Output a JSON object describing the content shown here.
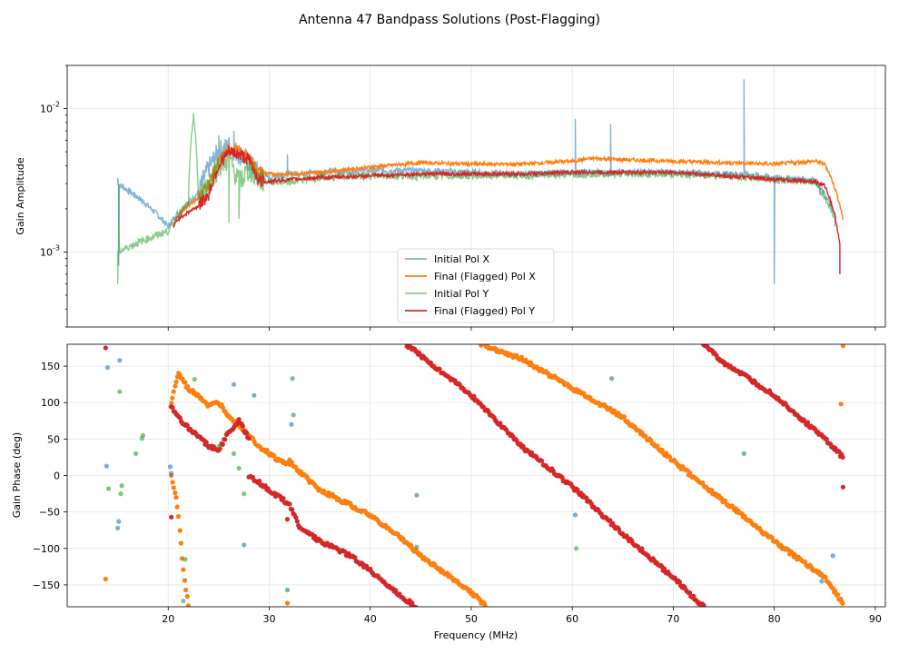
{
  "chart_data": [
    {
      "type": "line",
      "title": "Antenna 47 Bandpass Solutions (Post-Flagging)",
      "xlabel": "",
      "ylabel": "Gain Amplitude",
      "yscale": "log",
      "xlim": [
        10,
        91
      ],
      "ylim": [
        0.0003,
        0.02
      ],
      "y_ticks": [
        {
          "value": 0.01,
          "label": "10^-2"
        },
        {
          "value": 0.001,
          "label": "10^-3"
        }
      ],
      "legend_position": "lower-center",
      "series": [
        {
          "name": "Initial Pol X",
          "color": "#1f77b4",
          "x": [
            15,
            20,
            21,
            22,
            23,
            24,
            25,
            26,
            27,
            28,
            29,
            30,
            32,
            35,
            40,
            45,
            50,
            55,
            60,
            63,
            65,
            70,
            75,
            77,
            80,
            84,
            86
          ],
          "y": [
            0.003,
            0.0015,
            0.0019,
            0.0022,
            0.0026,
            0.0038,
            0.005,
            0.0055,
            0.0048,
            0.0042,
            0.0035,
            0.0033,
            0.0035,
            0.0036,
            0.0037,
            0.0037,
            0.0036,
            0.0035,
            0.0036,
            0.0036,
            0.0036,
            0.0036,
            0.0035,
            0.0035,
            0.0033,
            0.0032,
            0.0018
          ]
        },
        {
          "name": "Final (Flagged) Pol X",
          "color": "#ff7f0e",
          "x": [
            20.5,
            21,
            22,
            23,
            24,
            25,
            26,
            27,
            28,
            29,
            30,
            32,
            35,
            40,
            45,
            50,
            55,
            60,
            62,
            65,
            70,
            75,
            80,
            84,
            85,
            86,
            86.8
          ],
          "y": [
            0.0015,
            0.0018,
            0.0021,
            0.0024,
            0.003,
            0.0042,
            0.0052,
            0.005,
            0.0045,
            0.0036,
            0.0035,
            0.0035,
            0.0036,
            0.0039,
            0.0042,
            0.0041,
            0.0041,
            0.0043,
            0.0045,
            0.0044,
            0.0043,
            0.0042,
            0.0041,
            0.0043,
            0.0041,
            0.0028,
            0.0017
          ]
        },
        {
          "name": "Initial Pol Y",
          "color": "#2ca02c",
          "x": [
            15,
            20,
            21,
            22,
            22.5,
            23,
            24,
            25,
            26,
            27,
            28,
            29,
            30,
            32,
            35,
            40,
            45,
            50,
            55,
            60,
            65,
            70,
            75,
            80,
            84,
            86
          ],
          "y": [
            0.001,
            0.0014,
            0.0018,
            0.0022,
            0.009,
            0.0023,
            0.003,
            0.004,
            0.0045,
            0.003,
            0.0038,
            0.0032,
            0.0031,
            0.0031,
            0.0033,
            0.0034,
            0.0034,
            0.0034,
            0.0034,
            0.0035,
            0.0035,
            0.0035,
            0.0034,
            0.0032,
            0.0031,
            0.0017
          ]
        },
        {
          "name": "Final (Flagged) Pol Y",
          "color": "#d62728",
          "x": [
            20.5,
            21,
            22,
            23,
            24,
            25,
            26,
            27,
            28,
            29,
            30,
            32,
            35,
            40,
            45,
            50,
            55,
            60,
            65,
            70,
            75,
            80,
            84,
            85,
            86,
            86.5
          ],
          "y": [
            0.0015,
            0.0017,
            0.0019,
            0.0021,
            0.0025,
            0.004,
            0.005,
            0.0048,
            0.0044,
            0.0031,
            0.0031,
            0.0032,
            0.0033,
            0.0034,
            0.0035,
            0.0035,
            0.0035,
            0.0036,
            0.0036,
            0.0036,
            0.0034,
            0.0032,
            0.0031,
            0.0029,
            0.0018,
            0.0011
          ]
        }
      ]
    },
    {
      "type": "scatter",
      "title": "",
      "xlabel": "Frequency (MHz)",
      "ylabel": "Gain Phase (deg)",
      "xlim": [
        10,
        91
      ],
      "ylim": [
        -180,
        180
      ],
      "x_ticks": [
        20,
        30,
        40,
        50,
        60,
        70,
        80,
        90
      ],
      "y_ticks": [
        -150,
        -100,
        -50,
        0,
        50,
        100,
        150
      ],
      "series": [
        {
          "name": "Final (Flagged) Pol X",
          "color": "#ff7f0e",
          "segments": [
            {
              "x": [
                20.3,
                20.6,
                20.9,
                21.2,
                21.5,
                21.8,
                22.0
              ],
              "y": [
                0,
                -20,
                -40,
                -80,
                -130,
                -160,
                -180
              ]
            },
            {
              "x": [
                20.3,
                21,
                22,
                23,
                24,
                25,
                26,
                27,
                28,
                29,
                30,
                31,
                32
              ],
              "y": [
                100,
                140,
                118,
                110,
                95,
                100,
                82,
                70,
                55,
                40,
                30,
                20,
                15
              ]
            },
            {
              "x": [
                32,
                33,
                35,
                38,
                40,
                43,
                45,
                48,
                50,
                51.5
              ],
              "y": [
                20,
                5,
                -20,
                -40,
                -55,
                -85,
                -110,
                -140,
                -160,
                -180
              ]
            },
            {
              "x": [
                51,
                55,
                60,
                65,
                70,
                75,
                80,
                85,
                86.8
              ],
              "y": [
                180,
                160,
                120,
                80,
                20,
                -35,
                -90,
                -140,
                -175
              ]
            }
          ],
          "outliers": [
            {
              "x": 13.8,
              "y": -142
            },
            {
              "x": 31.8,
              "y": -175
            },
            {
              "x": 86.6,
              "y": 98
            },
            {
              "x": 86.8,
              "y": 178
            }
          ]
        },
        {
          "name": "Final (Flagged) Pol Y",
          "color": "#d62728",
          "segments": [
            {
              "x": [
                20.3,
                21,
                22,
                23,
                24,
                25,
                26,
                27,
                28
              ],
              "y": [
                95,
                80,
                65,
                55,
                40,
                35,
                60,
                75,
                50
              ]
            },
            {
              "x": [
                28,
                30,
                32,
                33,
                35,
                38,
                40,
                43,
                44.5
              ],
              "y": [
                0,
                -20,
                -40,
                -70,
                -90,
                -110,
                -130,
                -165,
                -180
              ]
            },
            {
              "x": [
                43.5,
                45,
                50,
                55,
                60,
                65,
                70,
                73
              ],
              "y": [
                180,
                165,
                110,
                40,
                -15,
                -80,
                -140,
                -180
              ]
            },
            {
              "x": [
                73,
                75,
                80,
                85,
                86.8
              ],
              "y": [
                180,
                155,
                110,
                50,
                25
              ]
            }
          ],
          "outliers": [
            {
              "x": 13.8,
              "y": 175
            },
            {
              "x": 20.3,
              "y": -57
            },
            {
              "x": 31.8,
              "y": -60
            },
            {
              "x": 86.8,
              "y": -16
            }
          ]
        },
        {
          "name": "Initial Pol X",
          "color": "#1f77b4",
          "outliers": [
            {
              "x": 13.9,
              "y": 13
            },
            {
              "x": 14.0,
              "y": 148
            },
            {
              "x": 15.2,
              "y": 158
            },
            {
              "x": 15.1,
              "y": -63
            },
            {
              "x": 15.0,
              "y": -72
            },
            {
              "x": 20.2,
              "y": 12
            },
            {
              "x": 20.3,
              "y": 3
            },
            {
              "x": 26.5,
              "y": 125
            },
            {
              "x": 27.5,
              "y": -95
            },
            {
              "x": 28.5,
              "y": 110
            },
            {
              "x": 31.8,
              "y": -157
            },
            {
              "x": 32.3,
              "y": 133
            },
            {
              "x": 32.2,
              "y": 70
            },
            {
              "x": 44.6,
              "y": -27
            },
            {
              "x": 60.3,
              "y": -54
            },
            {
              "x": 63.9,
              "y": 133
            },
            {
              "x": 77.0,
              "y": 30
            },
            {
              "x": 85.8,
              "y": -110
            },
            {
              "x": 84.7,
              "y": -145
            }
          ]
        },
        {
          "name": "Initial Pol Y",
          "color": "#2ca02c",
          "outliers": [
            {
              "x": 14.1,
              "y": -18
            },
            {
              "x": 15.2,
              "y": 115
            },
            {
              "x": 15.3,
              "y": -25
            },
            {
              "x": 15.4,
              "y": -14
            },
            {
              "x": 16.8,
              "y": 30
            },
            {
              "x": 17.5,
              "y": 55
            },
            {
              "x": 17.4,
              "y": 51
            },
            {
              "x": 21.5,
              "y": -172
            },
            {
              "x": 21.7,
              "y": -115
            },
            {
              "x": 22.6,
              "y": 132
            },
            {
              "x": 25.0,
              "y": 40
            },
            {
              "x": 26.5,
              "y": 30
            },
            {
              "x": 27.0,
              "y": 10
            },
            {
              "x": 27.5,
              "y": -25
            },
            {
              "x": 32.4,
              "y": 83
            },
            {
              "x": 44.6,
              "y": -98
            },
            {
              "x": 60.4,
              "y": -100
            }
          ]
        }
      ]
    }
  ]
}
